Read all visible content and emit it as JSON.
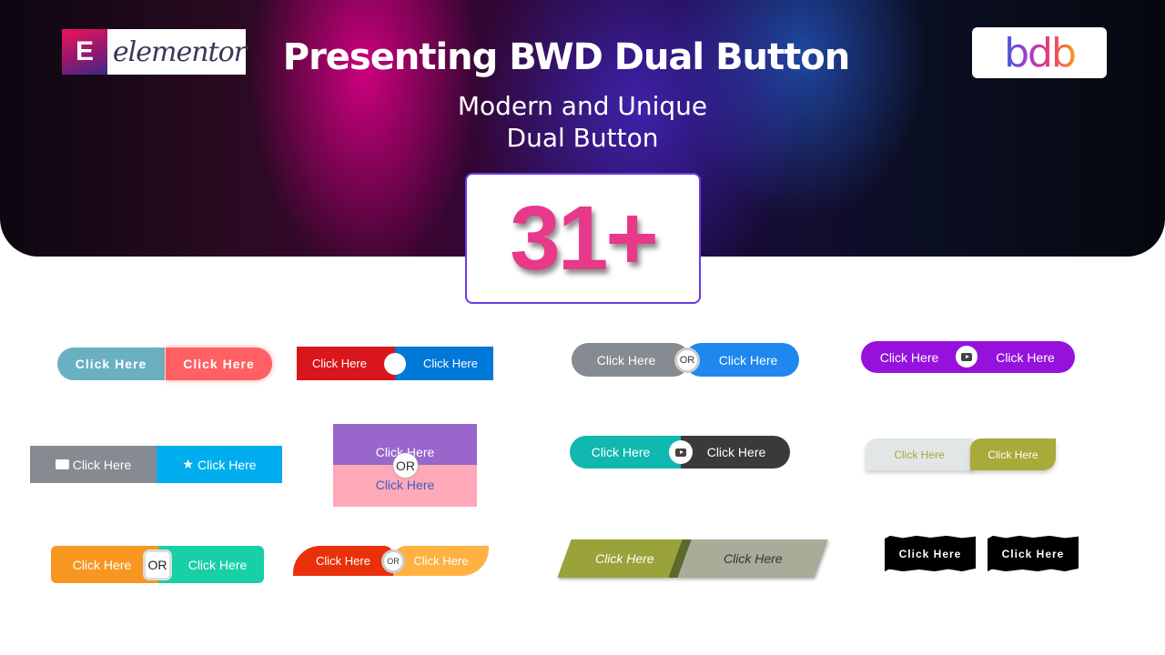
{
  "header": {
    "title": "Presenting BWD Dual Button",
    "subtitle_line1": "Modern and Unique",
    "subtitle_line2": "Dual Button",
    "badge": "31+"
  },
  "logos": {
    "elementor": "elementor",
    "elementor_icon": "E",
    "bdb": "bdb"
  },
  "colors": {
    "badge_text": "#e8388a",
    "badge_border": "#6a3be0"
  },
  "buttons": [
    {
      "left": "Click Here",
      "right": "Click Here"
    },
    {
      "left": "Click Here",
      "right": "Click Here"
    },
    {
      "left": "Click Here",
      "right": "Click Here",
      "divider": "OR"
    },
    {
      "left": "Click Here",
      "right": "Click Here",
      "divider_icon": "youtube-icon"
    },
    {
      "left": "Click Here",
      "right": "Click Here",
      "left_icon": "youtube-icon",
      "right_icon": "star-icon"
    },
    {
      "left": "Click Here",
      "right": "Click Here",
      "divider": "OR"
    },
    {
      "left": "Click Here",
      "right": "Click Here",
      "divider_icon": "youtube-icon"
    },
    {
      "left": "Click Here",
      "right": "Click Here"
    },
    {
      "left": "Click Here",
      "right": "Click Here",
      "divider": "OR"
    },
    {
      "left": "Click Here",
      "right": "Click Here",
      "divider": "OR"
    },
    {
      "left": "Click Here",
      "right": "Click Here"
    },
    {
      "left": "Click Here",
      "right": "Click Here"
    }
  ]
}
